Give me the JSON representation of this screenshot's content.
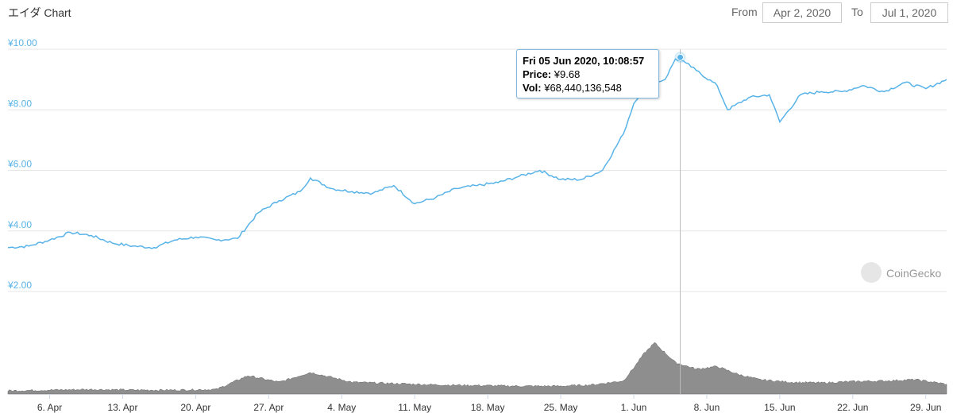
{
  "header": {
    "title": "エイダ Chart",
    "from_label": "From",
    "from_value": "Apr 2, 2020",
    "to_label": "To",
    "to_value": "Jul 1, 2020"
  },
  "brand": {
    "name": "CoinGecko"
  },
  "tooltip": {
    "date": "Fri 05 Jun 2020, 10:08:57",
    "price_label": "Price:",
    "price_value": "¥9.68",
    "vol_label": "Vol:",
    "vol_value": "¥68,440,136,548"
  },
  "colors": {
    "line": "#58b3e8",
    "volume": "#7a7a7a",
    "grid": "#e6e6e6",
    "axis_text": "#58b3e8"
  },
  "chart_data": {
    "type": "line",
    "title": "エイダ Chart",
    "y_tick_labels": [
      "¥2.00",
      "¥4.00",
      "¥6.00",
      "¥8.00",
      "¥10.00"
    ],
    "y_ticks": [
      2,
      4,
      6,
      8,
      10
    ],
    "ylim": [
      2,
      10
    ],
    "x_tick_labels": [
      "6. Apr",
      "13. Apr",
      "20. Apr",
      "27. Apr",
      "4. May",
      "11. May",
      "18. May",
      "25. May",
      "1. Jun",
      "8. Jun",
      "15. Jun",
      "22. Jun",
      "29. Jun"
    ],
    "grid": true,
    "series": [
      {
        "name": "Price",
        "x": [
          "2020-04-02",
          "2020-04-04",
          "2020-04-06",
          "2020-04-08",
          "2020-04-10",
          "2020-04-12",
          "2020-04-14",
          "2020-04-16",
          "2020-04-18",
          "2020-04-20",
          "2020-04-22",
          "2020-04-24",
          "2020-04-26",
          "2020-04-28",
          "2020-04-30",
          "2020-05-01",
          "2020-05-03",
          "2020-05-05",
          "2020-05-07",
          "2020-05-09",
          "2020-05-11",
          "2020-05-13",
          "2020-05-15",
          "2020-05-17",
          "2020-05-19",
          "2020-05-21",
          "2020-05-23",
          "2020-05-25",
          "2020-05-27",
          "2020-05-29",
          "2020-05-31",
          "2020-06-01",
          "2020-06-02",
          "2020-06-03",
          "2020-06-04",
          "2020-06-05",
          "2020-06-06",
          "2020-06-07",
          "2020-06-09",
          "2020-06-10",
          "2020-06-12",
          "2020-06-14",
          "2020-06-15",
          "2020-06-17",
          "2020-06-19",
          "2020-06-21",
          "2020-06-23",
          "2020-06-25",
          "2020-06-27",
          "2020-06-29",
          "2020-07-01"
        ],
        "values": [
          3.45,
          3.5,
          3.7,
          3.95,
          3.85,
          3.6,
          3.5,
          3.45,
          3.7,
          3.8,
          3.7,
          3.75,
          4.6,
          5.0,
          5.3,
          5.75,
          5.4,
          5.3,
          5.25,
          5.5,
          4.9,
          5.1,
          5.4,
          5.5,
          5.6,
          5.8,
          6.0,
          5.7,
          5.7,
          6.0,
          7.2,
          8.2,
          8.7,
          8.9,
          9.0,
          9.68,
          9.55,
          9.3,
          8.8,
          8.0,
          8.4,
          8.5,
          7.6,
          8.5,
          8.6,
          8.6,
          8.8,
          8.6,
          8.9,
          8.7,
          9.0
        ]
      },
      {
        "name": "Volume",
        "x": [
          "2020-04-02",
          "2020-04-06",
          "2020-04-10",
          "2020-04-14",
          "2020-04-18",
          "2020-04-22",
          "2020-04-25",
          "2020-04-28",
          "2020-05-01",
          "2020-05-05",
          "2020-05-09",
          "2020-05-13",
          "2020-05-17",
          "2020-05-21",
          "2020-05-25",
          "2020-05-28",
          "2020-05-31",
          "2020-06-01",
          "2020-06-02",
          "2020-06-03",
          "2020-06-05",
          "2020-06-07",
          "2020-06-09",
          "2020-06-11",
          "2020-06-13",
          "2020-06-16",
          "2020-06-19",
          "2020-06-22",
          "2020-06-25",
          "2020-06-28",
          "2020-07-01"
        ],
        "values": [
          0.05,
          0.06,
          0.07,
          0.06,
          0.06,
          0.07,
          0.28,
          0.18,
          0.33,
          0.18,
          0.16,
          0.14,
          0.13,
          0.12,
          0.12,
          0.14,
          0.2,
          0.4,
          0.62,
          0.78,
          0.48,
          0.38,
          0.42,
          0.3,
          0.22,
          0.18,
          0.17,
          0.19,
          0.2,
          0.22,
          0.15
        ]
      }
    ],
    "hover": {
      "x": "2020-06-05",
      "price": 9.68
    }
  }
}
